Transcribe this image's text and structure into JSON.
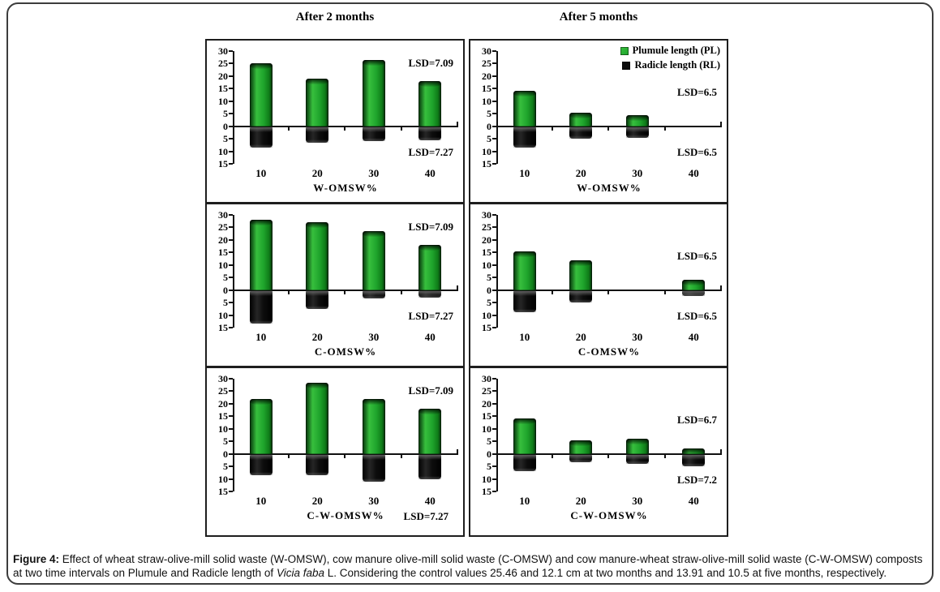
{
  "figure": {
    "column_titles": [
      "After 2 months",
      "After 5 months"
    ],
    "caption": {
      "label": "Figure 4:",
      "text_before_species": " Effect of wheat straw-olive-mill solid waste (W-OMSW), cow manure olive-mill solid waste (C-OMSW) and cow manure-wheat straw-olive-mill solid waste (C-W-OMSW) composts at two time intervals on Plumule and Radicle length of ",
      "species": "Vicia faba",
      "text_after_species": " L. Considering the control values 25.46 and 12.1 cm at two months and 13.91 and 10.5 at five months, respectively."
    },
    "colors": {
      "plumule_green": "#1ea32b",
      "radicle_black": "#0d0d0d",
      "axis_black": "#111111",
      "background": "#ffffff"
    }
  },
  "chart_data": [
    {
      "type": "bar",
      "time": "After 2 months",
      "xlabel": "W-OMSW%",
      "categories": [
        "10",
        "20",
        "30",
        "40"
      ],
      "series": [
        {
          "name": "Plumule length (PL)",
          "direction": "up",
          "color": "#1ea32b",
          "values": [
            25,
            19,
            26.5,
            18
          ]
        },
        {
          "name": "Radicle length (RL)",
          "direction": "down",
          "color": "#0d0d0d",
          "values": [
            8.5,
            6.5,
            6,
            5.5
          ]
        }
      ],
      "annotations": [
        {
          "text": "LSD=7.09",
          "position": "upper-right"
        },
        {
          "text": "LSD=7.27",
          "position": "lower-right"
        }
      ],
      "ylim": [
        -15,
        30
      ],
      "yticks": [
        30,
        25,
        20,
        15,
        10,
        5,
        0,
        -5,
        -10,
        -15
      ],
      "show_legend": false
    },
    {
      "type": "bar",
      "time": "After 5 months",
      "xlabel": "W-OMSW%",
      "categories": [
        "10",
        "20",
        "30",
        "40"
      ],
      "series": [
        {
          "name": "Plumule length (PL)",
          "direction": "up",
          "color": "#1ea32b",
          "values": [
            14,
            5.5,
            4.5,
            0
          ]
        },
        {
          "name": "Radicle length (RL)",
          "direction": "down",
          "color": "#0d0d0d",
          "values": [
            8.5,
            5,
            4.5,
            0
          ]
        }
      ],
      "annotations": [
        {
          "text": "LSD=6.5",
          "position": "mid-right"
        },
        {
          "text": "LSD=6.5",
          "position": "lower-right"
        }
      ],
      "ylim": [
        -15,
        30
      ],
      "yticks": [
        30,
        25,
        20,
        15,
        10,
        5,
        0,
        -5,
        -10,
        -15
      ],
      "show_legend": true
    },
    {
      "type": "bar",
      "time": "After 2 months",
      "xlabel": "C-OMSW%",
      "categories": [
        "10",
        "20",
        "30",
        "40"
      ],
      "series": [
        {
          "name": "Plumule length (PL)",
          "direction": "up",
          "color": "#1ea32b",
          "values": [
            28,
            27,
            23.5,
            18
          ]
        },
        {
          "name": "Radicle length (RL)",
          "direction": "down",
          "color": "#0d0d0d",
          "values": [
            13.5,
            7.5,
            3.5,
            3
          ]
        }
      ],
      "annotations": [
        {
          "text": "LSD=7.09",
          "position": "upper-right"
        },
        {
          "text": "LSD=7.27",
          "position": "lower-right"
        }
      ],
      "ylim": [
        -15,
        30
      ],
      "yticks": [
        30,
        25,
        20,
        15,
        10,
        5,
        0,
        -5,
        -10,
        -15
      ],
      "show_legend": false
    },
    {
      "type": "bar",
      "time": "After 5 months",
      "xlabel": "C-OMSW%",
      "categories": [
        "10",
        "20",
        "30",
        "40"
      ],
      "series": [
        {
          "name": "Plumule length (PL)",
          "direction": "up",
          "color": "#1ea32b",
          "values": [
            15.5,
            12,
            0,
            4
          ]
        },
        {
          "name": "Radicle length (RL)",
          "direction": "down",
          "color": "#0d0d0d",
          "values": [
            9,
            5,
            0,
            2.5
          ]
        }
      ],
      "annotations": [
        {
          "text": "LSD=6.5",
          "position": "mid-right"
        },
        {
          "text": "LSD=6.5",
          "position": "lower-right"
        }
      ],
      "ylim": [
        -15,
        30
      ],
      "yticks": [
        30,
        25,
        20,
        15,
        10,
        5,
        0,
        -5,
        -10,
        -15
      ],
      "show_legend": false
    },
    {
      "type": "bar",
      "time": "After 2 months",
      "xlabel": "C-W-OMSW%",
      "categories": [
        "10",
        "20",
        "30",
        "40"
      ],
      "series": [
        {
          "name": "Plumule length (PL)",
          "direction": "up",
          "color": "#1ea32b",
          "values": [
            22,
            28.5,
            22,
            18
          ]
        },
        {
          "name": "Radicle length (RL)",
          "direction": "down",
          "color": "#0d0d0d",
          "values": [
            8.5,
            8.5,
            11,
            10
          ]
        }
      ],
      "annotations": [
        {
          "text": "LSD=7.09",
          "position": "upper-right"
        },
        {
          "text": "LSD=7.27",
          "position": "below-axis"
        }
      ],
      "ylim": [
        -15,
        30
      ],
      "yticks": [
        30,
        25,
        20,
        15,
        10,
        5,
        0,
        -5,
        -10,
        -15
      ],
      "show_legend": false
    },
    {
      "type": "bar",
      "time": "After 5 months",
      "xlabel": "C-W-OMSW%",
      "categories": [
        "10",
        "20",
        "30",
        "40"
      ],
      "series": [
        {
          "name": "Plumule length (PL)",
          "direction": "up",
          "color": "#1ea32b",
          "values": [
            14,
            5.5,
            6,
            2
          ]
        },
        {
          "name": "Radicle length (RL)",
          "direction": "down",
          "color": "#0d0d0d",
          "values": [
            7,
            3.5,
            4,
            5
          ]
        }
      ],
      "annotations": [
        {
          "text": "LSD=6.7",
          "position": "mid-right"
        },
        {
          "text": "LSD=7.2",
          "position": "lower-right"
        }
      ],
      "ylim": [
        -15,
        30
      ],
      "yticks": [
        30,
        25,
        20,
        15,
        10,
        5,
        0,
        -5,
        -10,
        -15
      ],
      "show_legend": false
    }
  ]
}
